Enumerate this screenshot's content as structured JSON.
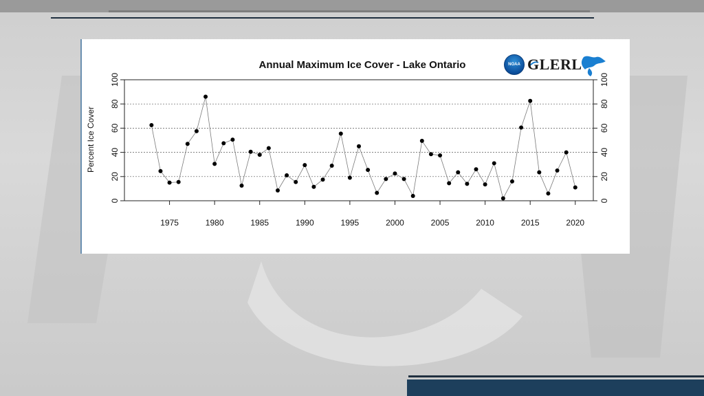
{
  "logo": {
    "agency_badge": "NOAA",
    "lab_name": "GLERL"
  },
  "colors": {
    "panel_bg": "#ffffff",
    "point_color": "#000000",
    "line_color": "#7a7a7a",
    "grid_color": "#555555"
  },
  "chart_data": {
    "type": "line",
    "title": "Annual Maximum Ice Cover - Lake Ontario",
    "xlabel": "",
    "ylabel": "Percent Ice Cover",
    "ylim": [
      0,
      100
    ],
    "xlim": [
      1970,
      2022
    ],
    "yticks": [
      0,
      20,
      40,
      60,
      80,
      100
    ],
    "xticks": [
      1975,
      1980,
      1985,
      1990,
      1995,
      2000,
      2005,
      2010,
      2015,
      2020
    ],
    "grid": "horizontal dotted",
    "right_axis_mirrored": true,
    "markers": "filled circles",
    "x": [
      1973,
      1974,
      1975,
      1976,
      1977,
      1978,
      1979,
      1980,
      1981,
      1982,
      1983,
      1984,
      1985,
      1986,
      1987,
      1988,
      1989,
      1990,
      1991,
      1992,
      1993,
      1994,
      1995,
      1996,
      1997,
      1998,
      1999,
      2000,
      2001,
      2002,
      2003,
      2004,
      2005,
      2006,
      2007,
      2008,
      2009,
      2010,
      2011,
      2012,
      2013,
      2014,
      2015,
      2016,
      2017,
      2018,
      2019,
      2020
    ],
    "values": [
      62.5,
      24.5,
      15,
      15.5,
      47,
      57.5,
      86,
      30.5,
      47.5,
      50.5,
      12.5,
      40.5,
      38,
      43.5,
      8.5,
      21,
      15.5,
      29.5,
      11.5,
      17.5,
      29,
      55.5,
      19,
      45,
      25.5,
      6.5,
      18,
      22.5,
      18,
      4,
      49.5,
      38.5,
      37.5,
      14.5,
      23.5,
      14,
      26,
      13.5,
      31,
      2,
      16,
      60.5,
      82.5,
      23.5,
      6,
      25,
      40,
      11
    ]
  }
}
